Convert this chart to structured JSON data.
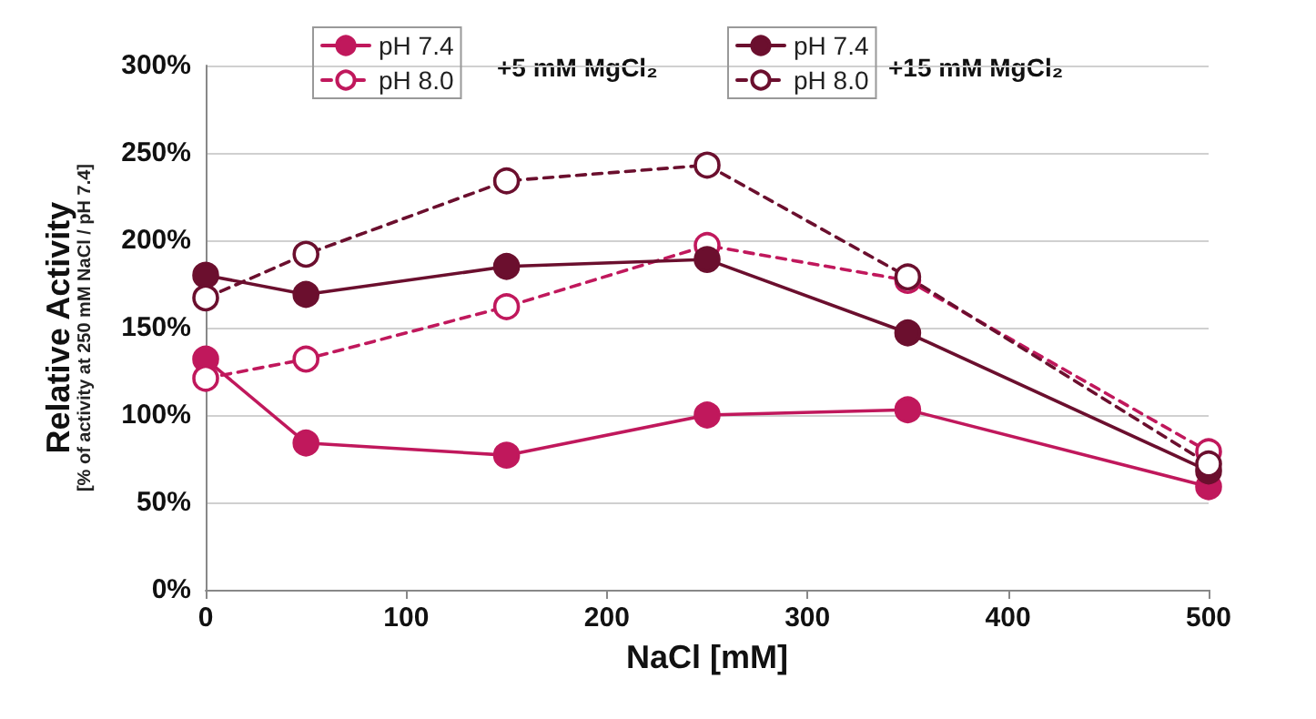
{
  "chart_data": {
    "type": "line",
    "xlabel": "NaCl [mM]",
    "ylabel": "Relative Activity",
    "annotations": [
      "[% of activity at 250 mM NaCl / pH 7.4]",
      "+5 mM MgCl₂",
      "+15 mM MgCl₂"
    ],
    "x": [
      0,
      50,
      150,
      250,
      350,
      500
    ],
    "series": [
      {
        "name": "pH 7.4",
        "color": "#c0185c",
        "line_style": "solid",
        "values": [
          132,
          84,
          77,
          100,
          103,
          59
        ]
      },
      {
        "name": "pH 8.0",
        "color": "#c0185c",
        "line_style": "dashed",
        "values": [
          121,
          132,
          162,
          197,
          177,
          79
        ]
      },
      {
        "name": "pH 7.4",
        "color": "#6b0f2e",
        "line_style": "solid",
        "values": [
          180,
          169,
          185,
          189,
          147,
          68
        ]
      },
      {
        "name": "pH 8.0",
        "color": "#6b0f2e",
        "line_style": "dashed",
        "values": [
          167,
          192,
          234,
          243,
          179,
          72
        ]
      }
    ],
    "xlim": [
      0,
      500
    ],
    "xticks": [
      0,
      100,
      200,
      300,
      400,
      500
    ],
    "ylim": [
      0,
      300
    ],
    "yticks": [
      {
        "value": 0,
        "label": "0%"
      },
      {
        "value": 50,
        "label": "50%"
      },
      {
        "value": 100,
        "label": "100%"
      },
      {
        "value": 150,
        "label": "150%"
      },
      {
        "value": 200,
        "label": "200%"
      },
      {
        "value": 250,
        "label": "250%"
      },
      {
        "value": 300,
        "label": "300%"
      }
    ],
    "grid": "y",
    "legend": "top",
    "marker": "circle"
  }
}
